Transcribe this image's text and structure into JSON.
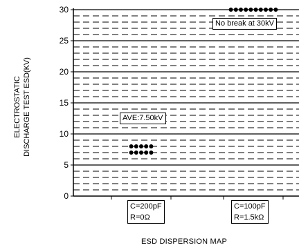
{
  "chart_data": {
    "type": "scatter",
    "title": "",
    "ylabel_lines": [
      "ELECTROSTATIC",
      "DISCHARGE TEST ESD(KV)"
    ],
    "xlabel": "ESD DISPERSION MAP",
    "ylim": [
      0,
      30
    ],
    "yticks": [
      0,
      5,
      10,
      15,
      20,
      25,
      30
    ],
    "grid": {
      "major_step": 5,
      "minor_step": 1,
      "minor_style": "dashed"
    },
    "conditions": [
      {
        "label_lines": [
          "C=200pF",
          "R=0Ω"
        ]
      },
      {
        "label_lines": [
          "C=100pF",
          "R=1.5kΩ"
        ]
      }
    ],
    "series": [
      {
        "condition": 0,
        "points": [
          8,
          8,
          8,
          8,
          8,
          7,
          7,
          7,
          7,
          7
        ],
        "annotation": "AVE:7.50kV"
      },
      {
        "condition": 1,
        "points": [
          30,
          30,
          30,
          30,
          30,
          30,
          30,
          30,
          30,
          30
        ],
        "annotation": "No break at 30kV"
      }
    ],
    "legend": "none"
  }
}
